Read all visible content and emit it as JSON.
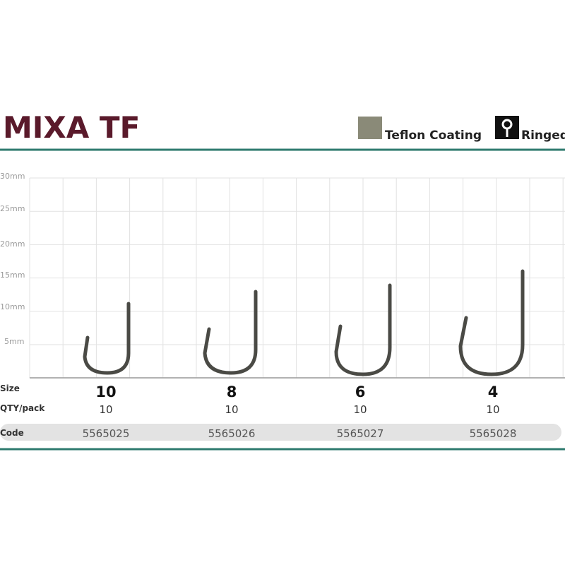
{
  "header": {
    "title": "MIXA TF",
    "legend": [
      "Teflon Coating",
      "Ringed"
    ]
  },
  "scale": {
    "labels": [
      "30mm",
      "25mm",
      "20mm",
      "15mm",
      "10mm",
      "5mm"
    ]
  },
  "table": {
    "rows": [
      {
        "label": "Size",
        "cells": [
          "10",
          "8",
          "6",
          "4"
        ]
      },
      {
        "label": "QTY/pack",
        "cells": [
          "10",
          "10",
          "10",
          "10"
        ]
      },
      {
        "label": "Code",
        "cells": [
          "5565025",
          "5565026",
          "5565027",
          "5565028"
        ]
      }
    ]
  }
}
